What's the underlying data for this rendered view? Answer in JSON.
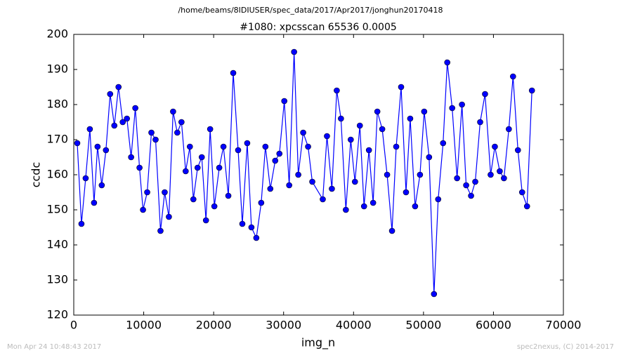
{
  "chart_data": {
    "type": "line",
    "suptitle": "/home/beams/8IDIUSER/spec_data/2017/Apr2017/jonghun20170418",
    "title": "#1080: xpcsscan 65536 0.0005",
    "xlabel": "img_n",
    "ylabel": "ccdc",
    "footer_left": "Mon Apr 24 10:48:43 2017",
    "footer_right": "spec2nexus, (C) 2014-2017",
    "xlim": [
      0,
      70000
    ],
    "xticks": [
      0,
      10000,
      20000,
      30000,
      40000,
      50000,
      60000,
      70000
    ],
    "ylim": [
      120,
      200
    ],
    "yticks": [
      120,
      130,
      140,
      150,
      160,
      170,
      180,
      190,
      200
    ],
    "x": [
      500,
      1100,
      1700,
      2300,
      2900,
      3400,
      4000,
      4600,
      5200,
      5800,
      6400,
      7000,
      7600,
      8200,
      8800,
      9400,
      9900,
      10500,
      11100,
      11700,
      12400,
      13000,
      13600,
      14200,
      14800,
      15400,
      16000,
      16600,
      17100,
      17700,
      18300,
      18900,
      19500,
      20100,
      20800,
      21400,
      22100,
      22800,
      23500,
      24100,
      24800,
      25400,
      26100,
      26800,
      27400,
      28100,
      28800,
      29400,
      30100,
      30800,
      31500,
      32100,
      32800,
      33500,
      34100,
      35600,
      36200,
      36900,
      37600,
      38200,
      38900,
      39600,
      40200,
      40900,
      41500,
      42200,
      42800,
      43400,
      44100,
      44800,
      45500,
      46100,
      46800,
      47500,
      48100,
      48800,
      49500,
      50100,
      50800,
      51500,
      52100,
      52800,
      53400,
      54100,
      54800,
      55500,
      56100,
      56800,
      57400,
      58100,
      58800,
      59600,
      60200,
      60900,
      61500,
      62200,
      62800,
      63500,
      64100,
      64800,
      65500
    ],
    "series": [
      {
        "name": "ccdc",
        "color": "#0000ff",
        "values": [
          169,
          146,
          159,
          173,
          152,
          168,
          157,
          167,
          183,
          174,
          185,
          175,
          176,
          165,
          179,
          162,
          150,
          155,
          172,
          170,
          144,
          155,
          148,
          178,
          172,
          175,
          161,
          168,
          153,
          162,
          165,
          147,
          173,
          151,
          162,
          168,
          154,
          189,
          167,
          146,
          169,
          145,
          142,
          152,
          168,
          156,
          164,
          166,
          181,
          157,
          195,
          160,
          172,
          168,
          158,
          153,
          171,
          156,
          184,
          176,
          150,
          170,
          158,
          174,
          151,
          167,
          152,
          178,
          173,
          160,
          144,
          168,
          185,
          155,
          176,
          151,
          160,
          178,
          165,
          126,
          153,
          169,
          192,
          179,
          159,
          180,
          157,
          154,
          158,
          175,
          183,
          160,
          168,
          161,
          159,
          173,
          188,
          167,
          155,
          151,
          184
        ]
      }
    ]
  }
}
